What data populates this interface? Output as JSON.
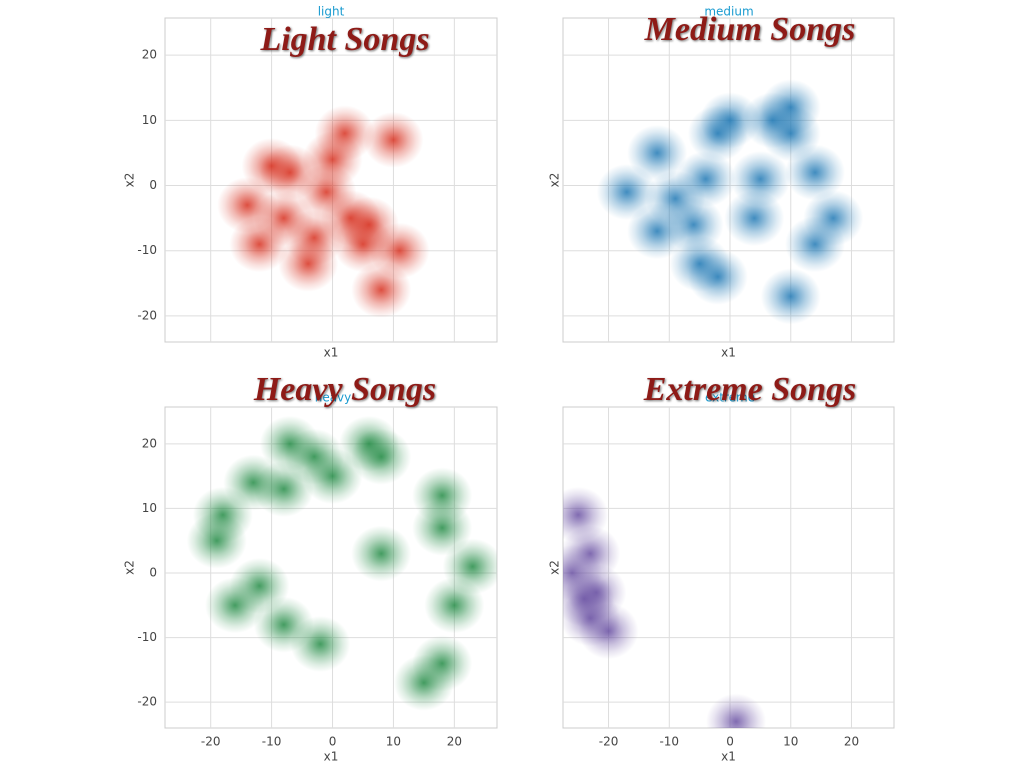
{
  "chart_data": [
    {
      "type": "kde",
      "title": "Light Songs",
      "subtitle": "light",
      "xlabel": "x1",
      "ylabel": "x2",
      "xlim": [
        -27.5,
        27
      ],
      "ylim": [
        -24,
        25.7
      ],
      "xticks": [
        -20,
        -10,
        0,
        10,
        20
      ],
      "yticks": [
        -20,
        -10,
        0,
        10,
        20
      ],
      "show_xtick_labels": false,
      "show_ytick_labels": true,
      "grid": true,
      "color": "#d7301f",
      "x": [
        -4,
        -3,
        -8,
        -1,
        0,
        8,
        11,
        6,
        3,
        10,
        -10,
        -14,
        -7,
        5,
        2,
        -12
      ],
      "y": [
        -12,
        -8,
        -5,
        -1,
        4,
        -16,
        -10,
        -6,
        -5,
        7,
        3,
        -3,
        2,
        -9,
        8,
        -9
      ]
    },
    {
      "type": "kde",
      "title": "Medium Songs",
      "subtitle": "medium",
      "xlabel": "x1",
      "ylabel": "x2",
      "xlim": [
        -27.5,
        27
      ],
      "ylim": [
        -24,
        25.7
      ],
      "xticks": [
        -20,
        -10,
        0,
        10,
        20
      ],
      "yticks": [
        -20,
        -10,
        0,
        10,
        20
      ],
      "show_xtick_labels": false,
      "show_ytick_labels": false,
      "grid": true,
      "color": "#1f78b4",
      "x": [
        10,
        10,
        14,
        14,
        17,
        10,
        0,
        -2,
        -12,
        -17,
        -4,
        5,
        -6,
        -5,
        -2,
        -12,
        4,
        -9,
        7
      ],
      "y": [
        12,
        8,
        2,
        -9,
        -5,
        -17,
        10,
        8,
        5,
        -1,
        1,
        1,
        -6,
        -12,
        -14,
        -7,
        -5,
        -2,
        10
      ]
    },
    {
      "type": "kde",
      "title": "Heavy Songs",
      "subtitle": "heavy",
      "xlabel": "x1",
      "ylabel": "x2",
      "xlim": [
        -27.5,
        27
      ],
      "ylim": [
        -24,
        25.7
      ],
      "xticks": [
        -20,
        -10,
        0,
        10,
        20
      ],
      "yticks": [
        -20,
        -10,
        0,
        10,
        20
      ],
      "show_xtick_labels": true,
      "show_ytick_labels": true,
      "grid": true,
      "color": "#238b45",
      "x": [
        -13,
        -8,
        -3,
        -7,
        6,
        8,
        0,
        18,
        18,
        23,
        20,
        18,
        -18,
        -19,
        15,
        -12,
        -16,
        -2,
        -8,
        8
      ],
      "y": [
        14,
        13,
        18,
        20,
        20,
        18,
        15,
        12,
        7,
        1,
        -5,
        -14,
        9,
        5,
        -17,
        -2,
        -5,
        -11,
        -8,
        3
      ]
    },
    {
      "type": "kde",
      "title": "Extreme Songs",
      "subtitle": "extreme",
      "xlabel": "x1",
      "ylabel": "x2",
      "xlim": [
        -27.5,
        27
      ],
      "ylim": [
        -24,
        25.7
      ],
      "xticks": [
        -20,
        -10,
        0,
        10,
        20
      ],
      "yticks": [
        -20,
        -10,
        0,
        10,
        20
      ],
      "show_xtick_labels": true,
      "show_ytick_labels": false,
      "grid": true,
      "color": "#6a51a3",
      "x": [
        -25,
        -26,
        -23,
        -24,
        -22,
        -23,
        -20,
        1
      ],
      "y": [
        9,
        0,
        3,
        -4,
        -3,
        -7,
        -9,
        -23
      ]
    }
  ]
}
